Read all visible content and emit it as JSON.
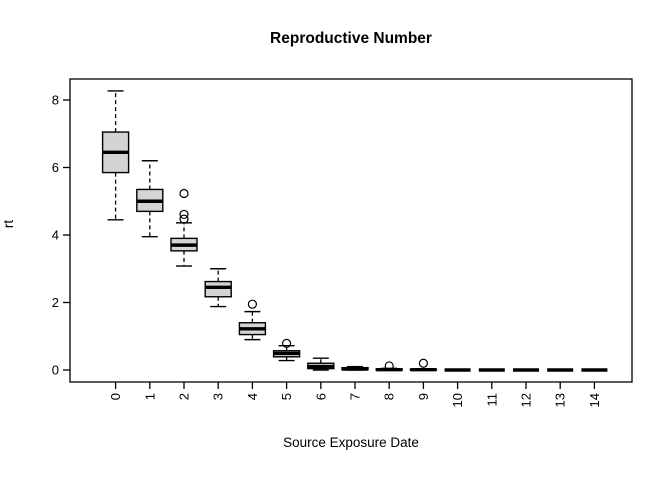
{
  "chart_data": {
    "type": "boxplot",
    "title": "Reproductive Number",
    "xlabel": "Source Exposure Date",
    "ylabel": "rt",
    "categories": [
      "0",
      "1",
      "2",
      "3",
      "4",
      "5",
      "6",
      "7",
      "8",
      "9",
      "10",
      "11",
      "12",
      "13",
      "14"
    ],
    "yticks": [
      0,
      2,
      4,
      6,
      8
    ],
    "ylim": [
      -0.4,
      8.65
    ],
    "grid": false,
    "frame": true,
    "legend": "none",
    "colors": {
      "box_fill": "#d4d4d4",
      "stroke": "#000000",
      "background": "#ffffff"
    },
    "boxes": [
      {
        "category": "0",
        "low": 4.45,
        "q1": 5.85,
        "median": 6.45,
        "q3": 7.05,
        "high": 8.27,
        "outliers": []
      },
      {
        "category": "1",
        "low": 3.95,
        "q1": 4.7,
        "median": 5.0,
        "q3": 5.35,
        "high": 6.2,
        "outliers": []
      },
      {
        "category": "2",
        "low": 3.08,
        "q1": 3.53,
        "median": 3.7,
        "q3": 3.9,
        "high": 4.36,
        "outliers": [
          4.47,
          4.61,
          5.23
        ]
      },
      {
        "category": "3",
        "low": 1.88,
        "q1": 2.17,
        "median": 2.45,
        "q3": 2.62,
        "high": 3.0,
        "outliers": []
      },
      {
        "category": "4",
        "low": 0.9,
        "q1": 1.05,
        "median": 1.22,
        "q3": 1.4,
        "high": 1.73,
        "outliers": [
          1.95
        ]
      },
      {
        "category": "5",
        "low": 0.28,
        "q1": 0.39,
        "median": 0.49,
        "q3": 0.57,
        "high": 0.72,
        "outliers": [
          0.79
        ]
      },
      {
        "category": "6",
        "low": 0.0,
        "q1": 0.04,
        "median": 0.1,
        "q3": 0.2,
        "high": 0.35,
        "outliers": []
      },
      {
        "category": "7",
        "low": 0.0,
        "q1": 0.01,
        "median": 0.03,
        "q3": 0.07,
        "high": 0.1,
        "outliers": []
      },
      {
        "category": "8",
        "low": 0.0,
        "q1": 0.0,
        "median": 0.01,
        "q3": 0.03,
        "high": 0.05,
        "outliers": [
          0.12
        ]
      },
      {
        "category": "9",
        "low": 0.0,
        "q1": 0.0,
        "median": 0.01,
        "q3": 0.02,
        "high": 0.03,
        "outliers": [
          0.2
        ]
      },
      {
        "category": "10",
        "low": 0,
        "q1": 0,
        "median": 0,
        "q3": 0,
        "high": 0,
        "outliers": []
      },
      {
        "category": "11",
        "low": 0,
        "q1": 0,
        "median": 0,
        "q3": 0,
        "high": 0,
        "outliers": []
      },
      {
        "category": "12",
        "low": 0,
        "q1": 0,
        "median": 0,
        "q3": 0,
        "high": 0,
        "outliers": []
      },
      {
        "category": "13",
        "low": 0,
        "q1": 0,
        "median": 0,
        "q3": 0,
        "high": 0,
        "outliers": []
      },
      {
        "category": "14",
        "low": 0,
        "q1": 0,
        "median": 0,
        "q3": 0,
        "high": 0,
        "outliers": []
      }
    ]
  }
}
